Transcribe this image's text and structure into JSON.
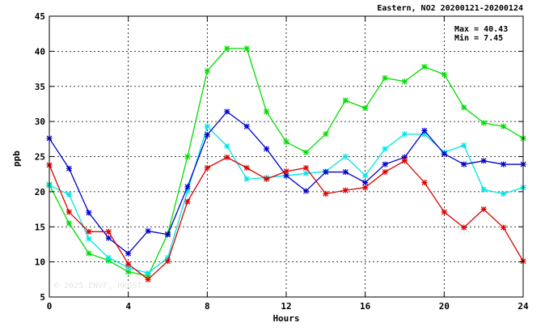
{
  "chart_data": {
    "type": "line",
    "title": "Eastern, NO2 20200121-20200124",
    "xlabel": "Hours",
    "ylabel": "ppb",
    "xlim": [
      0,
      24
    ],
    "ylim": [
      5,
      45
    ],
    "xticks": [
      0,
      4,
      8,
      12,
      16,
      20,
      24
    ],
    "yticks": [
      5,
      10,
      15,
      20,
      25,
      30,
      35,
      40,
      45
    ],
    "grid": true,
    "stats": {
      "max_label": "Max = 40.43",
      "min_label": "Min =  7.45"
    },
    "watermark": "© 2025  ENVF, HKUST",
    "x": [
      0,
      1,
      2,
      3,
      4,
      5,
      6,
      7,
      8,
      9,
      10,
      11,
      12,
      13,
      14,
      15,
      16,
      17,
      18,
      19,
      20,
      21,
      22,
      23,
      24
    ],
    "series": [
      {
        "color": "#00dd00",
        "values": [
          21.0,
          15.5,
          11.2,
          10.2,
          8.6,
          8.0,
          14.0,
          25.0,
          37.2,
          40.4,
          40.4,
          31.4,
          27.1,
          25.6,
          28.2,
          33.0,
          31.9,
          36.2,
          35.7,
          37.8,
          36.7,
          32.0,
          29.8,
          29.3,
          27.6
        ]
      },
      {
        "color": "#00e5e5",
        "values": [
          20.9,
          19.6,
          13.3,
          10.6,
          9.2,
          8.4,
          10.6,
          20.1,
          29.3,
          26.5,
          21.8,
          22.0,
          22.3,
          22.6,
          22.9,
          25.0,
          22.3,
          26.1,
          28.2,
          28.2,
          25.6,
          26.6,
          20.3,
          19.7,
          20.6
        ]
      },
      {
        "color": "#0000cc",
        "values": [
          27.6,
          23.3,
          17.0,
          13.4,
          11.2,
          14.4,
          13.9,
          20.7,
          28.1,
          31.4,
          29.3,
          26.1,
          22.3,
          20.1,
          22.8,
          22.8,
          21.3,
          23.9,
          24.9,
          28.7,
          25.4,
          23.9,
          24.4,
          23.9,
          23.9
        ]
      },
      {
        "color": "#dd0000",
        "values": [
          23.8,
          17.1,
          14.3,
          14.3,
          9.7,
          7.5,
          10.1,
          18.6,
          23.4,
          24.9,
          23.4,
          21.8,
          22.9,
          23.4,
          19.7,
          20.2,
          20.6,
          22.8,
          24.4,
          21.3,
          17.1,
          14.9,
          17.5,
          14.9,
          10.1
        ]
      }
    ]
  }
}
